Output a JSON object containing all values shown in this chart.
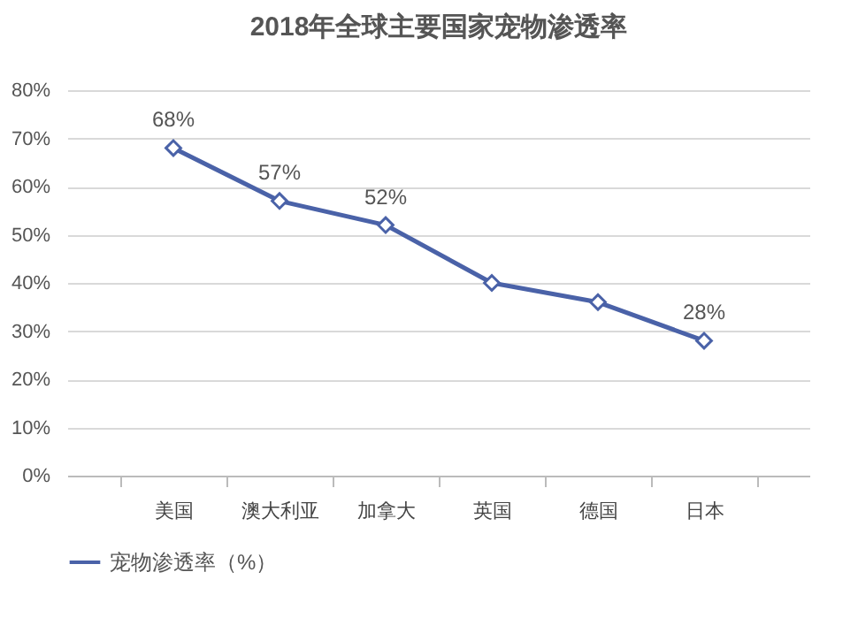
{
  "chart_data": {
    "type": "line",
    "title": "2018年全球主要国家宠物渗透率",
    "categories": [
      "美国",
      "澳大利亚",
      "加拿大",
      "英国",
      "德国",
      "日本"
    ],
    "series": [
      {
        "name": "宠物渗透率（%）",
        "color": "#4a62a8",
        "values": [
          68,
          57,
          52,
          40,
          36,
          28
        ]
      }
    ],
    "value_labels": [
      "68%",
      "57%",
      "52%",
      null,
      null,
      "28%"
    ],
    "ylim": [
      0,
      80
    ],
    "yticks": [
      {
        "value": 0,
        "label": "0%"
      },
      {
        "value": 10,
        "label": "10%"
      },
      {
        "value": 20,
        "label": "20%"
      },
      {
        "value": 30,
        "label": "30%"
      },
      {
        "value": 40,
        "label": "40%"
      },
      {
        "value": 50,
        "label": "50%"
      },
      {
        "value": 60,
        "label": "60%"
      },
      {
        "value": 70,
        "label": "70%"
      },
      {
        "value": 80,
        "label": "80%"
      }
    ],
    "grid": "y",
    "legend": "bottom",
    "marker": "diamond",
    "line_style": "solid"
  }
}
